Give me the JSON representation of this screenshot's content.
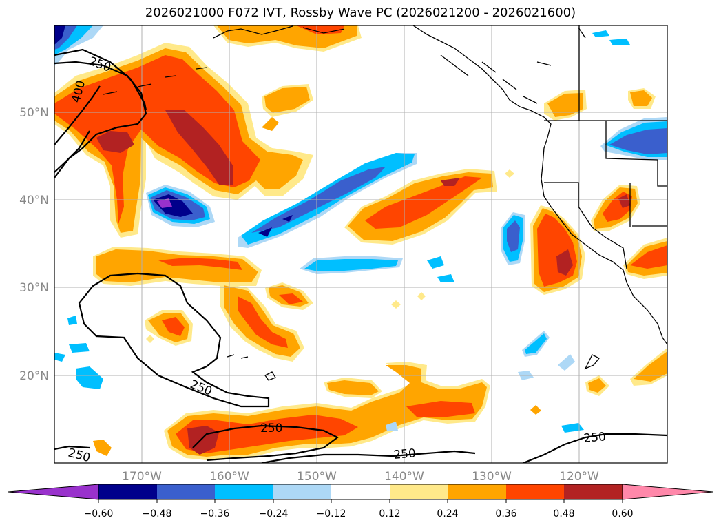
{
  "title": "2026021000 F072 IVT, Rossby Wave PC (2026021200 - 2026021600)",
  "map": {
    "lon_labels": [
      "170°W",
      "160°W",
      "150°W",
      "140°W",
      "130°W",
      "120°W"
    ],
    "lat_labels": [
      "50°N",
      "40°N",
      "30°N",
      "20°N"
    ],
    "contour_labels": [
      "250",
      "400",
      "250",
      "250",
      "250",
      "250",
      "250"
    ],
    "colors": {
      "n060": "#9932CC",
      "n048": "#00008B",
      "n036": "#3A5FCD",
      "n024": "#00BFFF",
      "n012": "#ADD8F6",
      "p012": "#FFE98A",
      "p024": "#FFA500",
      "p036": "#FF4500",
      "p048": "#B22222",
      "p060": "#FF88AA"
    }
  },
  "colorbar": {
    "ticks": [
      "−0.60",
      "−0.48",
      "−0.36",
      "−0.24",
      "−0.12",
      "0.12",
      "0.24",
      "0.36",
      "0.48",
      "0.60"
    ]
  }
}
